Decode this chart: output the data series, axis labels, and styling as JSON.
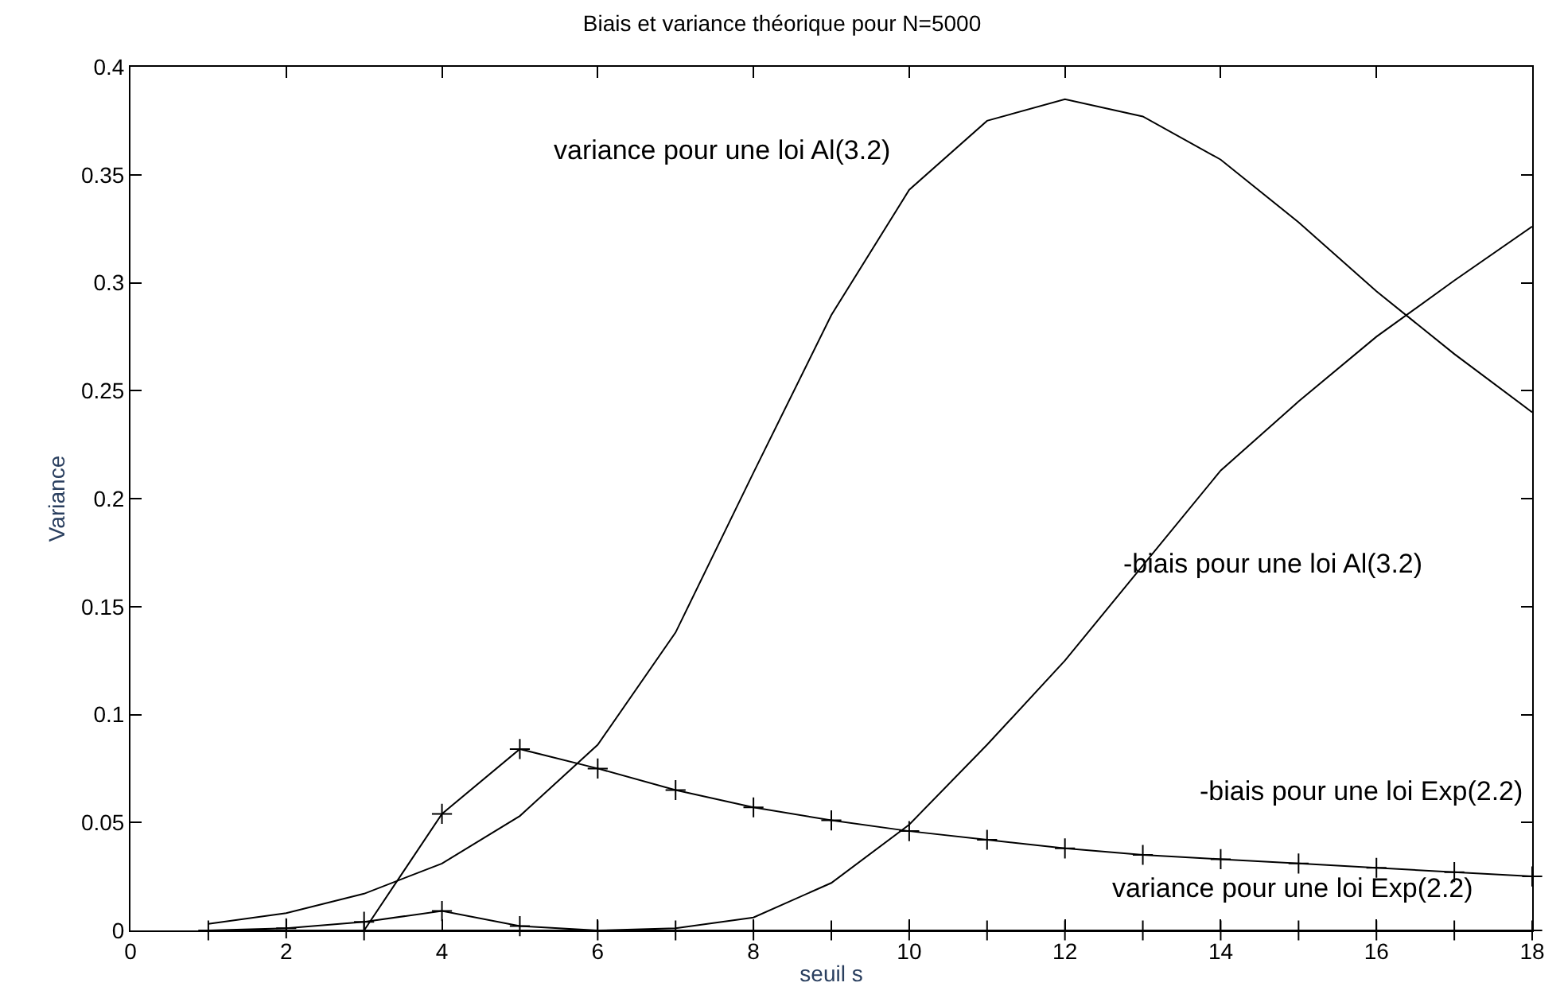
{
  "chart_data": {
    "type": "line",
    "title": "Biais et variance théorique pour N=5000",
    "xlabel": "seuil s",
    "ylabel": "Variance",
    "xlim": [
      0,
      18
    ],
    "xticks": [
      0,
      2,
      4,
      6,
      8,
      10,
      12,
      14,
      16,
      18
    ],
    "ylim": [
      0,
      0.4
    ],
    "yticks": [
      0,
      0.05,
      0.1,
      0.15,
      0.2,
      0.25,
      0.3,
      0.35,
      0.4
    ],
    "x": [
      1,
      2,
      3,
      4,
      5,
      6,
      7,
      8,
      9,
      10,
      11,
      12,
      13,
      14,
      15,
      16,
      17,
      18
    ],
    "series": [
      {
        "color": "#000000",
        "marker": "none",
        "values": [
          0.003,
          0.008,
          0.017,
          0.031,
          0.053,
          0.086,
          0.138,
          0.212,
          0.285,
          0.343,
          0.375,
          0.385,
          0.377,
          0.357,
          0.328,
          0.296,
          0.267,
          0.24
        ]
      },
      {
        "color": "#000000",
        "marker": "none",
        "values": [
          0,
          0,
          0,
          0,
          0,
          0,
          0.001,
          0.006,
          0.022,
          0.049,
          0.086,
          0.125,
          0.169,
          0.213,
          0.245,
          0.275,
          0.301,
          0.326
        ]
      },
      {
        "color": "#000000",
        "marker": "cross",
        "values": [
          null,
          null,
          0,
          0.054,
          0.084,
          0.075,
          0.065,
          0.057,
          0.051,
          0.046,
          0.042,
          0.038,
          0.035,
          0.033,
          0.031,
          0.029,
          0.027,
          0.025
        ]
      },
      {
        "color": "#000000",
        "marker": "cross",
        "values": [
          0,
          0.001,
          0.004,
          0.009,
          0.002,
          0,
          0,
          0,
          0,
          0,
          0,
          0,
          0,
          0,
          0,
          0,
          0,
          0
        ]
      }
    ],
    "annotations": [
      "variance pour une loi Al(3.2)",
      "-biais pour une loi Al(3.2)",
      "-biais pour une loi Exp(2.2)",
      "variance pour une loi Exp(2.2)"
    ]
  }
}
